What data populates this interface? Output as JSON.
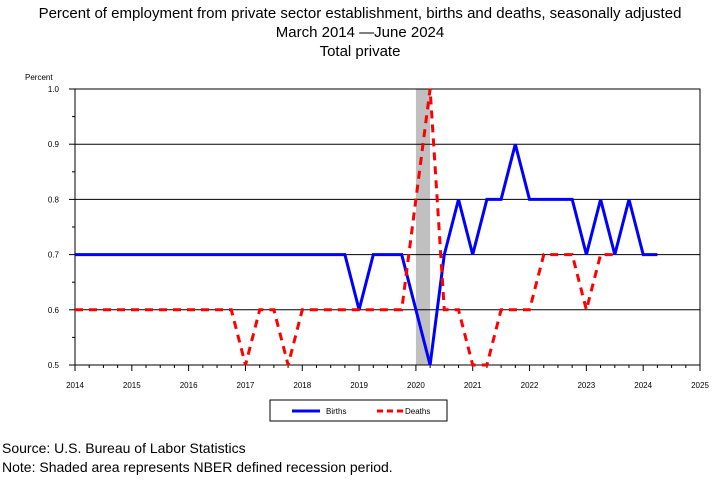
{
  "chart_data": {
    "type": "line",
    "title": "Percent of employment from private sector establishment, births and deaths, seasonally adjusted",
    "subtitle_start": "March 2014",
    "subtitle_end": "June 2024",
    "subtitle_line3": "Total private",
    "ylabel": "Percent",
    "ylim": [
      0.5,
      1.0
    ],
    "yticks": [
      "0.5",
      "0.6",
      "0.7",
      "0.8",
      "0.9",
      "1.0"
    ],
    "xlim": [
      2014,
      2025
    ],
    "xticks": [
      "2014",
      "2015",
      "2016",
      "2017",
      "2018",
      "2019",
      "2020",
      "2021",
      "2022",
      "2023",
      "2024",
      "2025"
    ],
    "grid": true,
    "legend_placement": "bottom-center",
    "recession": {
      "start": 2020.0,
      "end": 2020.25,
      "color": "#c0c0c0"
    },
    "series": [
      {
        "name": "Births",
        "color": "#0000ff",
        "style": "solid",
        "points": [
          [
            2014.0,
            0.7
          ],
          [
            2014.25,
            0.7
          ],
          [
            2014.5,
            0.7
          ],
          [
            2014.75,
            0.7
          ],
          [
            2015.0,
            0.7
          ],
          [
            2015.25,
            0.7
          ],
          [
            2015.5,
            0.7
          ],
          [
            2015.75,
            0.7
          ],
          [
            2016.0,
            0.7
          ],
          [
            2016.25,
            0.7
          ],
          [
            2016.5,
            0.7
          ],
          [
            2016.75,
            0.7
          ],
          [
            2017.0,
            0.7
          ],
          [
            2017.25,
            0.7
          ],
          [
            2017.5,
            0.7
          ],
          [
            2017.75,
            0.7
          ],
          [
            2018.0,
            0.7
          ],
          [
            2018.25,
            0.7
          ],
          [
            2018.5,
            0.7
          ],
          [
            2018.75,
            0.7
          ],
          [
            2019.0,
            0.6
          ],
          [
            2019.25,
            0.7
          ],
          [
            2019.5,
            0.7
          ],
          [
            2019.75,
            0.7
          ],
          [
            2020.0,
            0.6
          ],
          [
            2020.25,
            0.5
          ],
          [
            2020.5,
            0.7
          ],
          [
            2020.75,
            0.8
          ],
          [
            2021.0,
            0.7
          ],
          [
            2021.25,
            0.8
          ],
          [
            2021.5,
            0.8
          ],
          [
            2021.75,
            0.9
          ],
          [
            2022.0,
            0.8
          ],
          [
            2022.25,
            0.8
          ],
          [
            2022.5,
            0.8
          ],
          [
            2022.75,
            0.8
          ],
          [
            2023.0,
            0.7
          ],
          [
            2023.25,
            0.8
          ],
          [
            2023.5,
            0.7
          ],
          [
            2023.75,
            0.8
          ],
          [
            2024.0,
            0.7
          ],
          [
            2024.25,
            0.7
          ]
        ]
      },
      {
        "name": "Deaths",
        "color": "#ff0000",
        "style": "dashed",
        "points": [
          [
            2014.0,
            0.6
          ],
          [
            2014.25,
            0.6
          ],
          [
            2014.5,
            0.6
          ],
          [
            2014.75,
            0.6
          ],
          [
            2015.0,
            0.6
          ],
          [
            2015.25,
            0.6
          ],
          [
            2015.5,
            0.6
          ],
          [
            2015.75,
            0.6
          ],
          [
            2016.0,
            0.6
          ],
          [
            2016.25,
            0.6
          ],
          [
            2016.5,
            0.6
          ],
          [
            2016.75,
            0.6
          ],
          [
            2017.0,
            0.5
          ],
          [
            2017.25,
            0.6
          ],
          [
            2017.5,
            0.6
          ],
          [
            2017.75,
            0.5
          ],
          [
            2018.0,
            0.6
          ],
          [
            2018.25,
            0.6
          ],
          [
            2018.5,
            0.6
          ],
          [
            2018.75,
            0.6
          ],
          [
            2019.0,
            0.6
          ],
          [
            2019.25,
            0.6
          ],
          [
            2019.5,
            0.6
          ],
          [
            2019.75,
            0.6
          ],
          [
            2020.0,
            0.8
          ],
          [
            2020.25,
            1.0
          ],
          [
            2020.5,
            0.6
          ],
          [
            2020.75,
            0.6
          ],
          [
            2021.0,
            0.5
          ],
          [
            2021.25,
            0.5
          ],
          [
            2021.5,
            0.6
          ],
          [
            2021.75,
            0.6
          ],
          [
            2022.0,
            0.6
          ],
          [
            2022.25,
            0.7
          ],
          [
            2022.5,
            0.7
          ],
          [
            2022.75,
            0.7
          ],
          [
            2023.0,
            0.6
          ],
          [
            2023.25,
            0.7
          ],
          [
            2023.5,
            0.7
          ]
        ]
      }
    ]
  },
  "footer": {
    "source": "Source: U.S. Bureau of Labor Statistics",
    "note": "Note: Shaded area represents NBER defined recession period."
  }
}
